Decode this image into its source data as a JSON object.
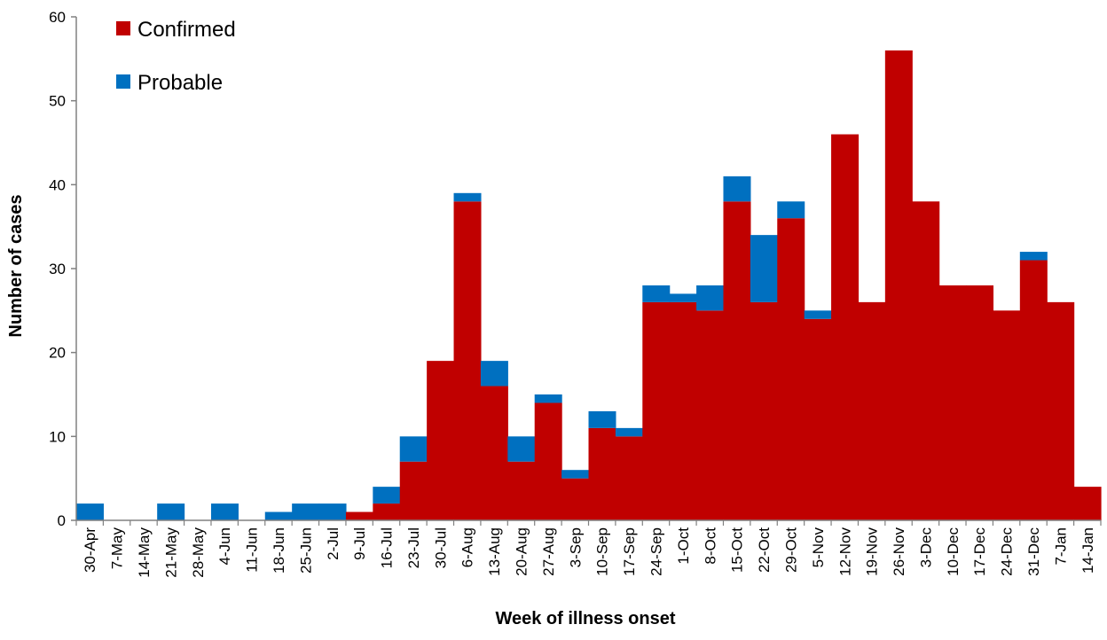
{
  "chart_data": {
    "type": "bar",
    "stacked": true,
    "title": "",
    "xlabel": "Week of illness onset",
    "ylabel": "Number of cases",
    "ylim": [
      0,
      60
    ],
    "yticks": [
      0,
      10,
      20,
      30,
      40,
      50,
      60
    ],
    "grid": false,
    "legend_position": "top-left",
    "categories": [
      "30-Apr",
      "7-May",
      "14-May",
      "21-May",
      "28-May",
      "4-Jun",
      "11-Jun",
      "18-Jun",
      "25-Jun",
      "2-Jul",
      "9-Jul",
      "16-Jul",
      "23-Jul",
      "30-Jul",
      "6-Aug",
      "13-Aug",
      "20-Aug",
      "27-Aug",
      "3-Sep",
      "10-Sep",
      "17-Sep",
      "24-Sep",
      "1-Oct",
      "8-Oct",
      "15-Oct",
      "22-Oct",
      "29-Oct",
      "5-Nov",
      "12-Nov",
      "19-Nov",
      "26-Nov",
      "3-Dec",
      "10-Dec",
      "17-Dec",
      "24-Dec",
      "31-Dec",
      "7-Jan",
      "14-Jan"
    ],
    "series": [
      {
        "name": "Confirmed",
        "color": "#c00000",
        "values": [
          0,
          0,
          0,
          0,
          0,
          0,
          0,
          0,
          0,
          0,
          1,
          2,
          7,
          19,
          38,
          16,
          7,
          14,
          5,
          11,
          10,
          26,
          26,
          25,
          38,
          26,
          36,
          24,
          46,
          26,
          56,
          38,
          28,
          28,
          25,
          31,
          26,
          4
        ]
      },
      {
        "name": "Probable",
        "color": "#0070c0",
        "values": [
          2,
          0,
          0,
          2,
          0,
          2,
          0,
          1,
          2,
          2,
          0,
          2,
          3,
          0,
          1,
          3,
          3,
          1,
          1,
          2,
          1,
          2,
          1,
          3,
          3,
          8,
          2,
          1,
          0,
          0,
          0,
          0,
          0,
          0,
          0,
          1,
          0,
          0
        ]
      }
    ]
  }
}
